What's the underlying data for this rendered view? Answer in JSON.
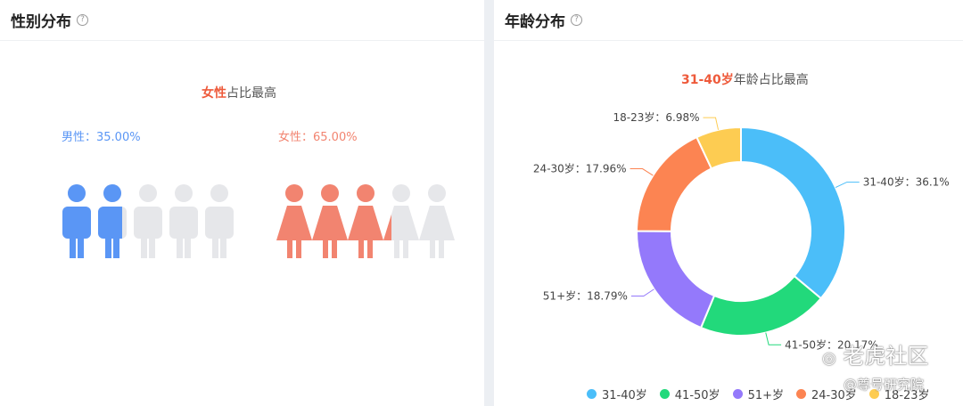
{
  "gender_panel": {
    "title": "性别分布",
    "help_icon": "question-circle-icon",
    "highlight": {
      "emphasis": "女性",
      "rest": "占比最高"
    },
    "male": {
      "label": "男性：35.00%",
      "share": 0.35,
      "icon_count": 5,
      "color": "#5a96f5"
    },
    "female": {
      "label": "女性：65.00%",
      "share": 0.65,
      "icon_count": 5,
      "color": "#f28470"
    },
    "inactive_color": "#e6e7ea"
  },
  "age_panel": {
    "title": "年龄分布",
    "help_icon": "question-circle-icon",
    "highlight": {
      "emphasis": "31-40岁",
      "rest": "年龄占比最高"
    },
    "legend": [
      "31-40岁",
      "41-50岁",
      "51+岁",
      "24-30岁",
      "18-23岁"
    ]
  },
  "chart_data": {
    "type": "pie",
    "variant": "donut",
    "categories": [
      "31-40岁",
      "41-50岁",
      "51+岁",
      "24-30岁",
      "18-23岁"
    ],
    "values": [
      36.1,
      20.17,
      18.79,
      17.96,
      6.98
    ],
    "slice_labels": [
      "31-40岁：36.1%",
      "41-50岁：20.17%",
      "51+岁：18.79%",
      "24-30岁：17.96%",
      "18-23岁：6.98%"
    ],
    "colors": [
      "#4bbef9",
      "#22d97b",
      "#9479fb",
      "#fc8452",
      "#fdcc52"
    ],
    "legend_position": "bottom"
  },
  "watermark": {
    "logo_text": "老虎社区",
    "handle": "@尊号研究院"
  }
}
